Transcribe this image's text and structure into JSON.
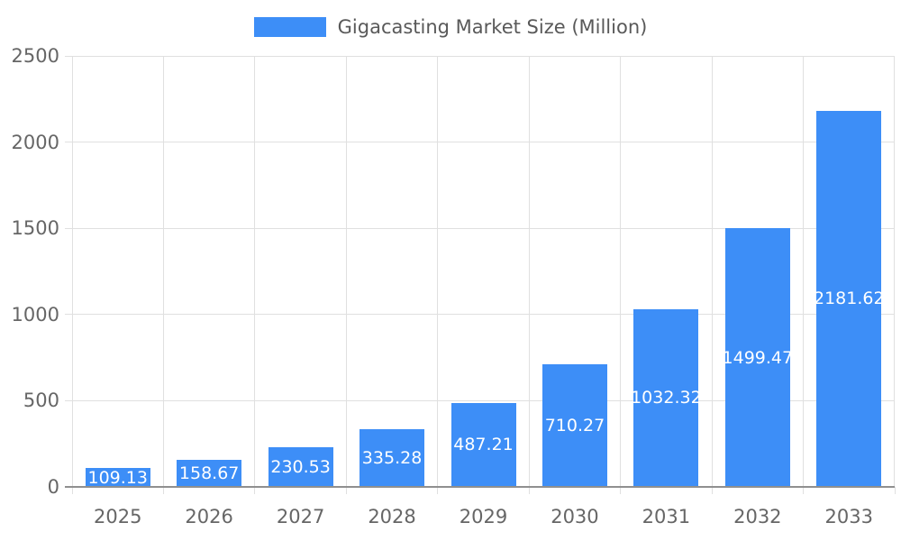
{
  "chart_data": {
    "type": "bar",
    "title": "Gigacasting Market Size (Million)",
    "categories": [
      "2025",
      "2026",
      "2027",
      "2028",
      "2029",
      "2030",
      "2031",
      "2032",
      "2033"
    ],
    "series": [
      {
        "name": "Gigacasting Market Size (Million)",
        "values": [
          109.13,
          158.67,
          230.53,
          335.28,
          487.21,
          710.27,
          1032.32,
          1499.47,
          2181.62
        ]
      }
    ],
    "value_labels": [
      "109.13",
      "158.67",
      "230.53",
      "335.28",
      "487.21",
      "710.27",
      "1032.32",
      "1499.47",
      "2181.62"
    ],
    "xlabel": "",
    "ylabel": "",
    "ylim": [
      0,
      2500
    ],
    "yticks": [
      0,
      500,
      1000,
      1500,
      2000,
      2500
    ],
    "grid": true,
    "legend_position": "top",
    "colors": {
      "bar": "#3d8ef7",
      "grid": "#e0e0e0",
      "axis_line": "#8f8f8f",
      "axis_text": "#666666",
      "legend_text": "#595959",
      "value_label_text": "#ffffff",
      "background": "#ffffff"
    }
  }
}
